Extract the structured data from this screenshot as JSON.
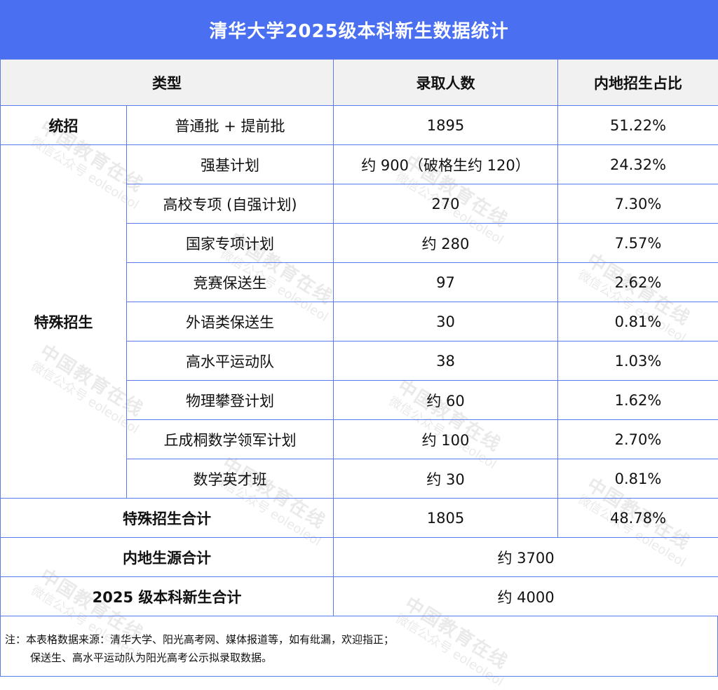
{
  "title": "清华大学2025级本科新生数据统计",
  "headers": {
    "type": "类型",
    "count": "录取人数",
    "ratio": "内地招生占比"
  },
  "tongzhao": {
    "group": "统招",
    "label": "普通批 + 提前批",
    "count": "1895",
    "ratio": "51.22%"
  },
  "special": {
    "group": "特殊招生",
    "rows": [
      {
        "label": "强基计划",
        "count": "约 900（破格生约 120）",
        "ratio": "24.32%"
      },
      {
        "label": "高校专项 (自强计划)",
        "count": "270",
        "ratio": "7.30%"
      },
      {
        "label": "国家专项计划",
        "count": "约 280",
        "ratio": "7.57%"
      },
      {
        "label": "竞赛保送生",
        "count": "97",
        "ratio": "2.62%"
      },
      {
        "label": "外语类保送生",
        "count": "30",
        "ratio": "0.81%"
      },
      {
        "label": "高水平运动队",
        "count": "38",
        "ratio": "1.03%"
      },
      {
        "label": "物理攀登计划",
        "count": "约 60",
        "ratio": "1.62%"
      },
      {
        "label": "丘成桐数学领军计划",
        "count": "约 100",
        "ratio": "2.70%"
      },
      {
        "label": "数学英才班",
        "count": "约 30",
        "ratio": "0.81%"
      }
    ]
  },
  "special_total": {
    "label": "特殊招生合计",
    "count": "1805",
    "ratio": "48.78%"
  },
  "mainland_total": {
    "label": "内地生源合计",
    "value": "约 3700"
  },
  "grand_total": {
    "label": "2025 级本科新生合计",
    "value": "约 4000"
  },
  "note": {
    "line1": "注：本表格数据来源：清华大学、阳光高考网、媒体报道等，如有纰漏，欢迎指正；",
    "line2": "保送生、高水平运动队为阳光高考公示拟录取数据。"
  },
  "watermark": {
    "line1": "中国教育在线",
    "line2": "微信公众号 eoleoleol"
  }
}
